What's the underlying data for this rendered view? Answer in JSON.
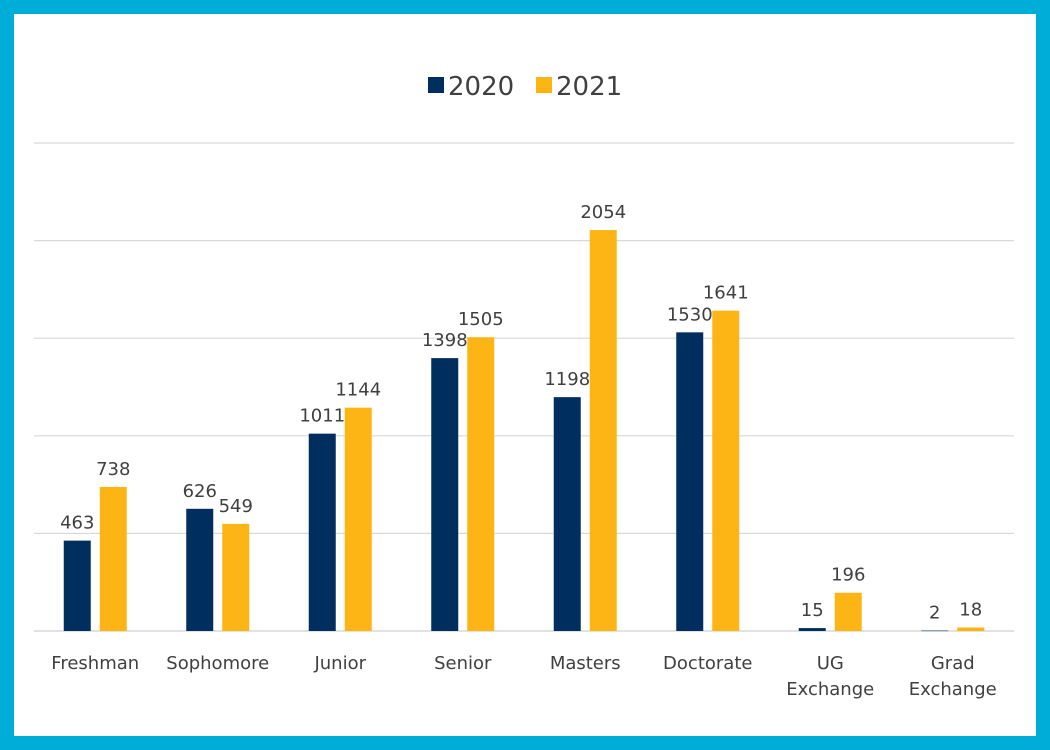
{
  "chart_data": {
    "type": "bar",
    "title": "",
    "xlabel": "",
    "ylabel": "",
    "categories": [
      [
        "Freshman"
      ],
      [
        "Sophomore"
      ],
      [
        "Junior"
      ],
      [
        "Senior"
      ],
      [
        "Masters"
      ],
      [
        "Doctorate"
      ],
      [
        "UG",
        "Exchange"
      ],
      [
        "Grad",
        "Exchange"
      ]
    ],
    "series": [
      {
        "name": "2020",
        "color": "#002F5F",
        "values": [
          463,
          626,
          1011,
          1398,
          1198,
          1530,
          15,
          2
        ]
      },
      {
        "name": "2021",
        "color": "#FDB515",
        "values": [
          738,
          549,
          1144,
          1505,
          2054,
          1641,
          196,
          18
        ]
      }
    ],
    "ylim": [
      0,
      2500
    ],
    "grid": true,
    "legend": "top-center",
    "y_ticks_shown": false,
    "data_labels": true
  },
  "frame": {
    "border_color": "#00ACD8"
  }
}
